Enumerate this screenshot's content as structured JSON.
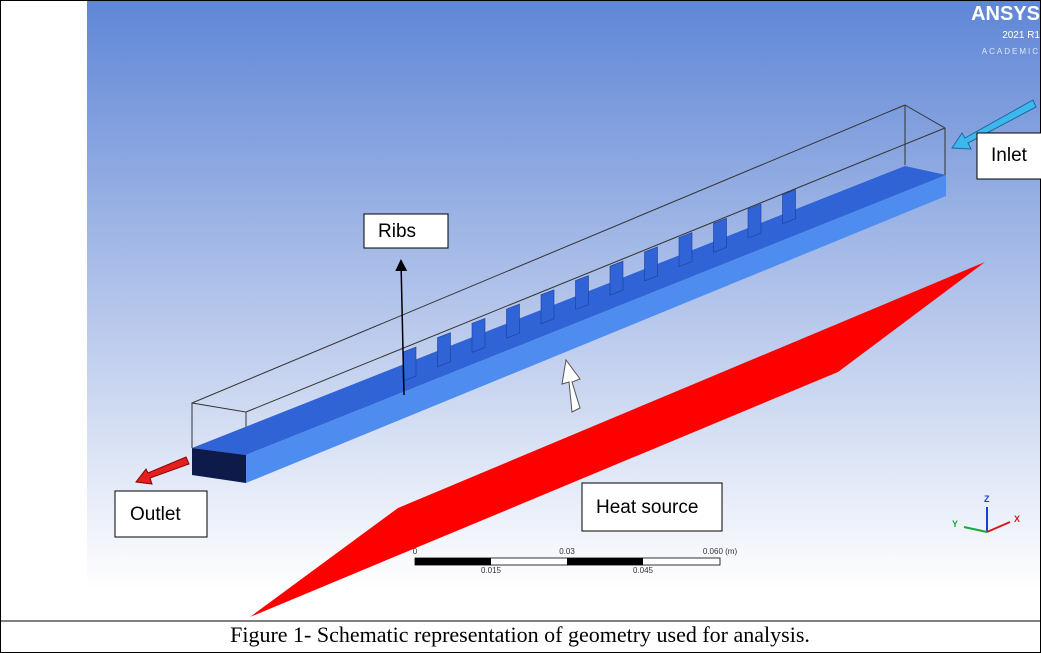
{
  "figure": {
    "image": {
      "logo": {
        "name": "ANSYS",
        "version": "2021 R1",
        "edition": "ACADEMIC"
      },
      "labels": {
        "ribs": "Ribs",
        "inlet": "Inlet",
        "outlet": "Outlet",
        "heat_source": "Heat source"
      },
      "scale_bar": {
        "top": [
          "0",
          "0.03",
          "0.060 (m)"
        ],
        "bottom": [
          "0.015",
          "0.045"
        ]
      },
      "triad": {
        "z": "Z",
        "y": "Y",
        "x": "X"
      }
    },
    "caption": "Figure 1- Schematic representation of geometry used for analysis."
  }
}
